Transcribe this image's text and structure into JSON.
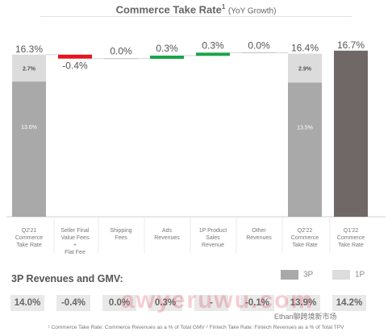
{
  "page": {
    "title": "Commerce Take Rate",
    "title_sup": "1",
    "title_sub": "(YoY Growth)"
  },
  "chart_data": {
    "type": "bar",
    "subtype": "waterfall",
    "title": "Commerce Take Rate",
    "categories": [
      "Q2'21 Commerce Take Rate",
      "Seller Final Value Fees + Flat Fee",
      "Shipping Fees",
      "Ads Revenues",
      "1P Product Sales Revenue",
      "Other Revenues",
      "Q2'22 Commerce Take Rate",
      "Q1'22 Commerce Take Rate"
    ],
    "category_lines": [
      [
        "Q2'21",
        "Commerce",
        "Take Rate"
      ],
      [
        "Seller Final",
        "Value Fees",
        "+",
        "Flat Fee"
      ],
      [
        "Shipping",
        "Fees"
      ],
      [
        "Ads",
        "Revenues"
      ],
      [
        "1P Product",
        "Sales",
        "Revenue"
      ],
      [
        "Other",
        "Revenues"
      ],
      [
        "Q2'22",
        "Commerce",
        "Take Rate"
      ],
      [
        "Q1'22",
        "Commerce",
        "Take Rate"
      ]
    ],
    "top_labels": [
      "16.3%",
      "-0.4%",
      "0.0%",
      "0.3%",
      "0.3%",
      "0.0%",
      "16.4%",
      "16.7%"
    ],
    "totals": [
      {
        "index": 0,
        "segments": [
          {
            "series": "3P",
            "value": 13.6,
            "label": "13.6%"
          },
          {
            "series": "1P",
            "value": 2.7,
            "label": "2.7%"
          }
        ]
      },
      {
        "index": 6,
        "segments": [
          {
            "series": "3P",
            "value": 13.5,
            "label": "13.5%"
          },
          {
            "series": "1P",
            "value": 2.9,
            "label": "2.9%"
          }
        ]
      },
      {
        "index": 7,
        "value": 16.7
      }
    ],
    "deltas": [
      {
        "index": 1,
        "value": -0.4,
        "color": "#e8141e"
      },
      {
        "index": 2,
        "value": 0.0
      },
      {
        "index": 3,
        "value": 0.3,
        "color": "#1aa34a"
      },
      {
        "index": 4,
        "value": 0.3,
        "color": "#1aa34a"
      },
      {
        "index": 5,
        "value": 0.0
      }
    ],
    "colors": {
      "3P": "#a9a9a9",
      "1P": "#dcdcdc",
      "Q1'22": "#6f6866",
      "negative": "#e8141e",
      "positive": "#1aa34a"
    },
    "ylim": [
      0,
      17.5
    ]
  },
  "gmv_section": {
    "title": "3P Revenues and GMV:",
    "legend": [
      {
        "label": "3P",
        "color": "#a9a9a9"
      },
      {
        "label": "1P",
        "color": "#dcdcdc"
      }
    ],
    "values": [
      "14.0%",
      "-0.4%",
      "0.0%",
      "0.3%",
      "-",
      "-0.1%",
      "13.9%",
      "14.2%"
    ]
  },
  "footnote": "¹ Commerce Take Rate: Commerce Revenues as a % of Total GMV  ² Fintech Take Rate: Fintech Revenues as a % of Total TPV",
  "watermark": {
    "text": "awyeruwu.com",
    "credit": "Ethan聊跨境新市场"
  }
}
